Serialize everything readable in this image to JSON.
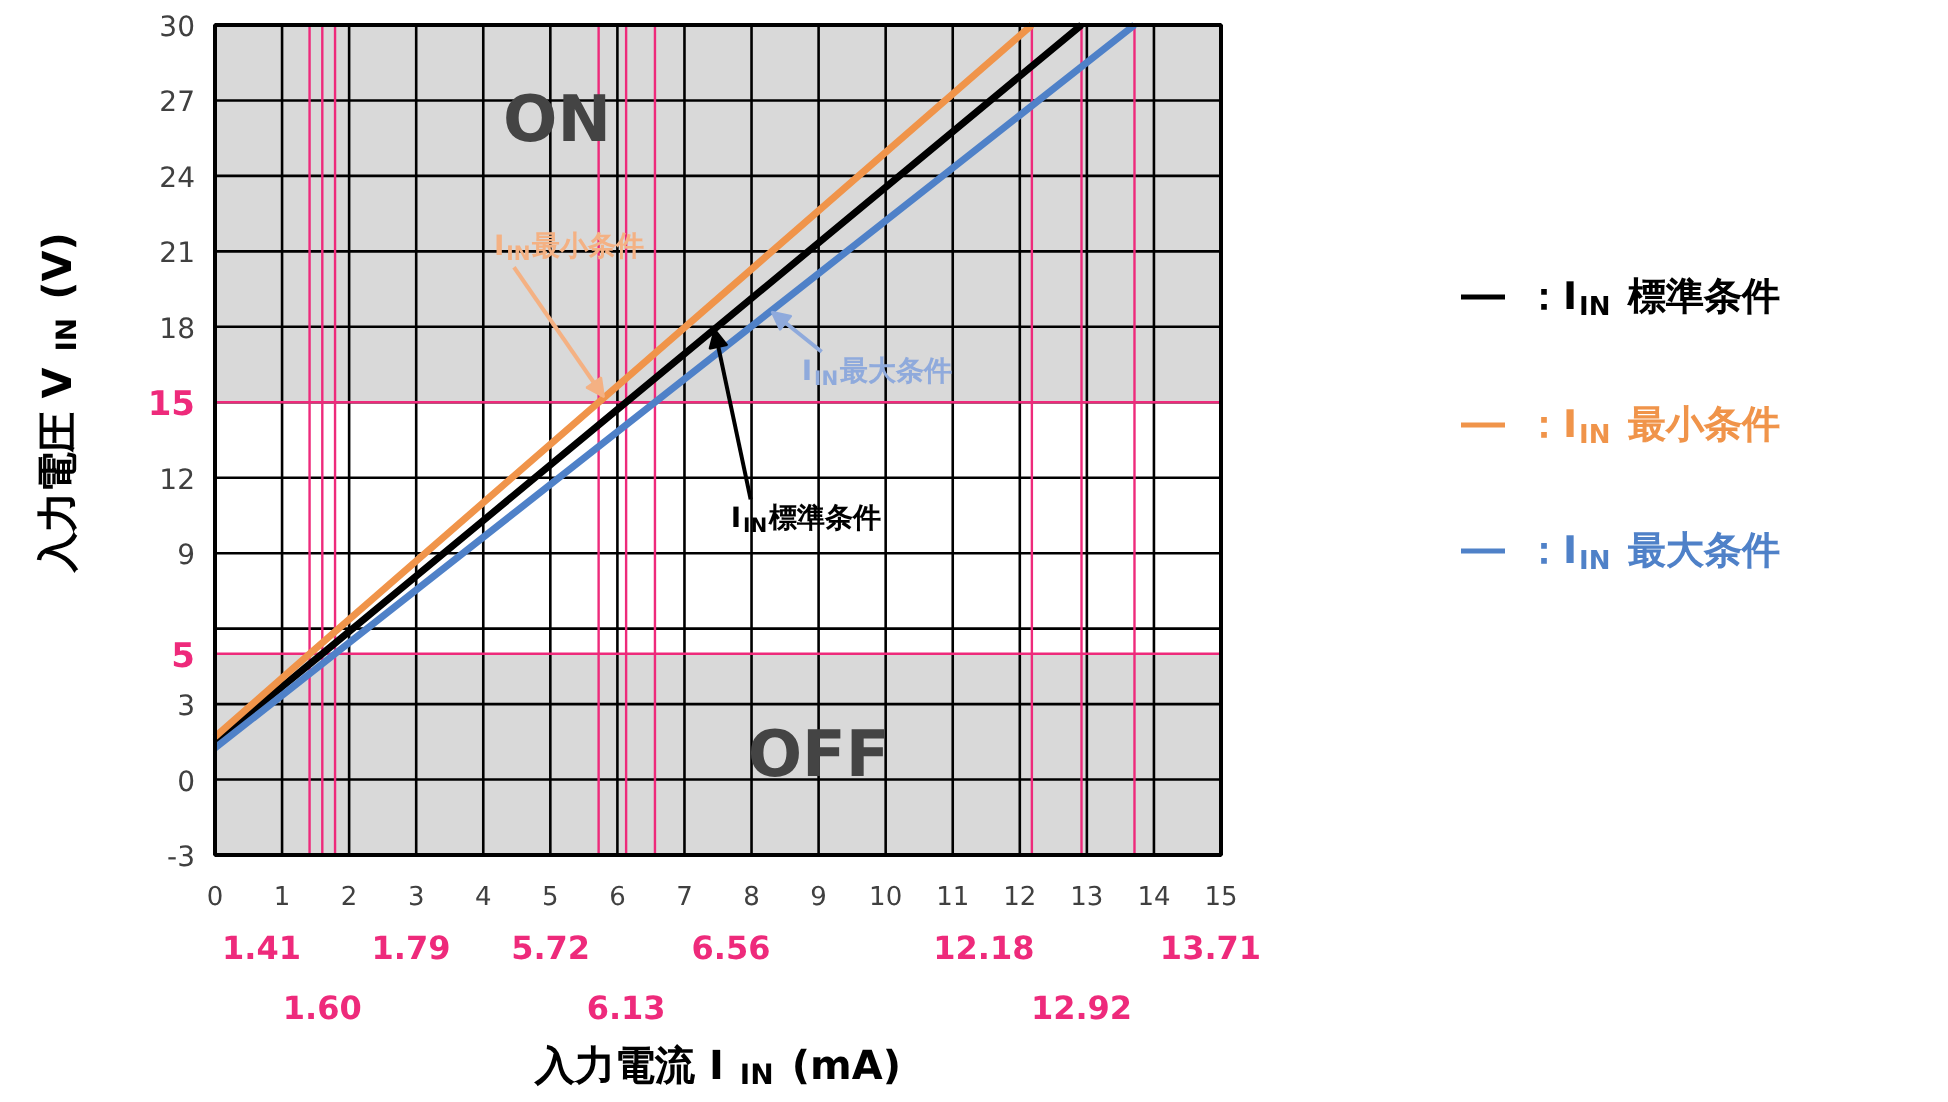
{
  "chart_data": {
    "type": "line",
    "xlabel": "入力電流  I$_{IN}$ (mA)",
    "ylabel": "入力電圧  V$_{IN}$ (V)",
    "xlim": [
      0,
      15
    ],
    "xticks": [
      0,
      1,
      2,
      3,
      4,
      5,
      6,
      7,
      8,
      9,
      10,
      11,
      12,
      13,
      14,
      15
    ],
    "ylim": [
      -3,
      30
    ],
    "yticks": [
      -3,
      0,
      3,
      {
        "value": 6,
        "label": null
      },
      9,
      12,
      {
        "value": 15,
        "label": null
      },
      18,
      21,
      24,
      27,
      30
    ],
    "grid": true,
    "legend": "right",
    "series": [
      {
        "name": "：I$_{IN}$ 標準条件",
        "color": "#000000",
        "x": [
          0,
          1.6,
          6.13,
          12.92
        ],
        "values": [
          1.5,
          5,
          15,
          30
        ]
      },
      {
        "name": "：I$_{IN}$ 最小条件",
        "color": "#f0944a",
        "x": [
          0,
          1.41,
          5.72,
          12.18
        ],
        "values": [
          1.7,
          5,
          15,
          30
        ]
      },
      {
        "name": "：I$_{IN}$ 最大条件",
        "color": "#4f81c8",
        "x": [
          0,
          1.79,
          6.56,
          13.71
        ],
        "values": [
          1.25,
          5,
          15,
          30
        ]
      }
    ],
    "bands": [
      {
        "axis": "y",
        "from": -3,
        "to": 5,
        "label": "OFF",
        "color": "#d9d9d9"
      },
      {
        "axis": "y",
        "from": 15,
        "to": 30,
        "label": "ON",
        "color": "#d9d9d9"
      }
    ],
    "ref_lines": [
      {
        "axis": "y",
        "value": 5,
        "label": "5",
        "color": "#ee2a7b"
      },
      {
        "axis": "y",
        "value": 15,
        "label": "15",
        "color": "#ee2a7b"
      },
      {
        "axis": "x",
        "value": 1.41,
        "label": "1.41",
        "color": "#ee2a7b"
      },
      {
        "axis": "x",
        "value": 1.6,
        "label": "1.60",
        "color": "#ee2a7b"
      },
      {
        "axis": "x",
        "value": 1.79,
        "label": "1.79",
        "color": "#ee2a7b"
      },
      {
        "axis": "x",
        "value": 5.72,
        "label": "5.72",
        "color": "#ee2a7b"
      },
      {
        "axis": "x",
        "value": 6.13,
        "label": "6.13",
        "color": "#ee2a7b"
      },
      {
        "axis": "x",
        "value": 6.56,
        "label": "6.56",
        "color": "#ee2a7b"
      },
      {
        "axis": "x",
        "value": 12.18,
        "label": "12.18",
        "color": "#ee2a7b"
      },
      {
        "axis": "x",
        "value": 12.92,
        "label": "12.92",
        "color": "#ee2a7b"
      },
      {
        "axis": "x",
        "value": 13.71,
        "label": "13.71",
        "color": "#ee2a7b"
      }
    ],
    "annotations": [
      {
        "text": "I$_{IN}$標準条件",
        "x": 7.45,
        "y": 17.9
      },
      {
        "text": "I$_{IN}$最小条件",
        "x": 5.8,
        "y": 15.2
      },
      {
        "text": "I$_{IN}$最大条件",
        "x": 8.3,
        "y": 18.6
      }
    ]
  }
}
